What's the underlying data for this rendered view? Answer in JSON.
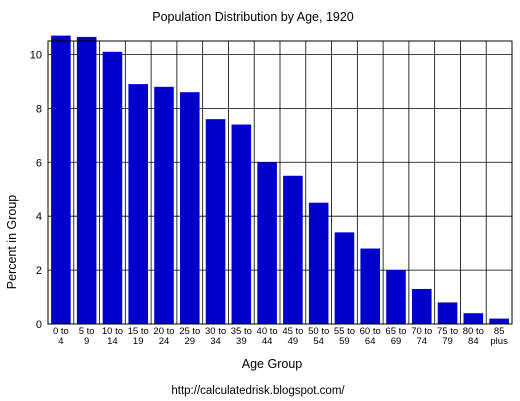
{
  "chart_data": {
    "type": "bar",
    "title": "Population Distribution by Age, 1920",
    "xlabel": "Age Group",
    "ylabel": "Percent in Group",
    "ylim": [
      0,
      10.5
    ],
    "yticks": [
      "0",
      "2",
      "4",
      "6",
      "8",
      "10"
    ],
    "grid": true,
    "bar_color": "#0000cc",
    "categories": [
      [
        "0 to",
        "4"
      ],
      [
        "5 to",
        "9"
      ],
      [
        "10 to",
        "14"
      ],
      [
        "15 to",
        "19"
      ],
      [
        "20 to",
        "24"
      ],
      [
        "25 to",
        "29"
      ],
      [
        "30 to",
        "34"
      ],
      [
        "35 to",
        "39"
      ],
      [
        "40 to",
        "44"
      ],
      [
        "45 to",
        "49"
      ],
      [
        "50 to",
        "54"
      ],
      [
        "55 to",
        "59"
      ],
      [
        "60 to",
        "64"
      ],
      [
        "65 to",
        "69"
      ],
      [
        "70 to",
        "74"
      ],
      [
        "75 to",
        "79"
      ],
      [
        "80 to",
        "84"
      ],
      [
        "85",
        "plus"
      ]
    ],
    "values": [
      10.7,
      10.65,
      10.1,
      8.9,
      8.8,
      8.6,
      7.6,
      7.4,
      6.0,
      5.5,
      4.5,
      3.4,
      2.8,
      2.0,
      1.3,
      0.8,
      0.4,
      0.2
    ]
  },
  "footer": "http://calculatedrisk.blogspot.com/"
}
